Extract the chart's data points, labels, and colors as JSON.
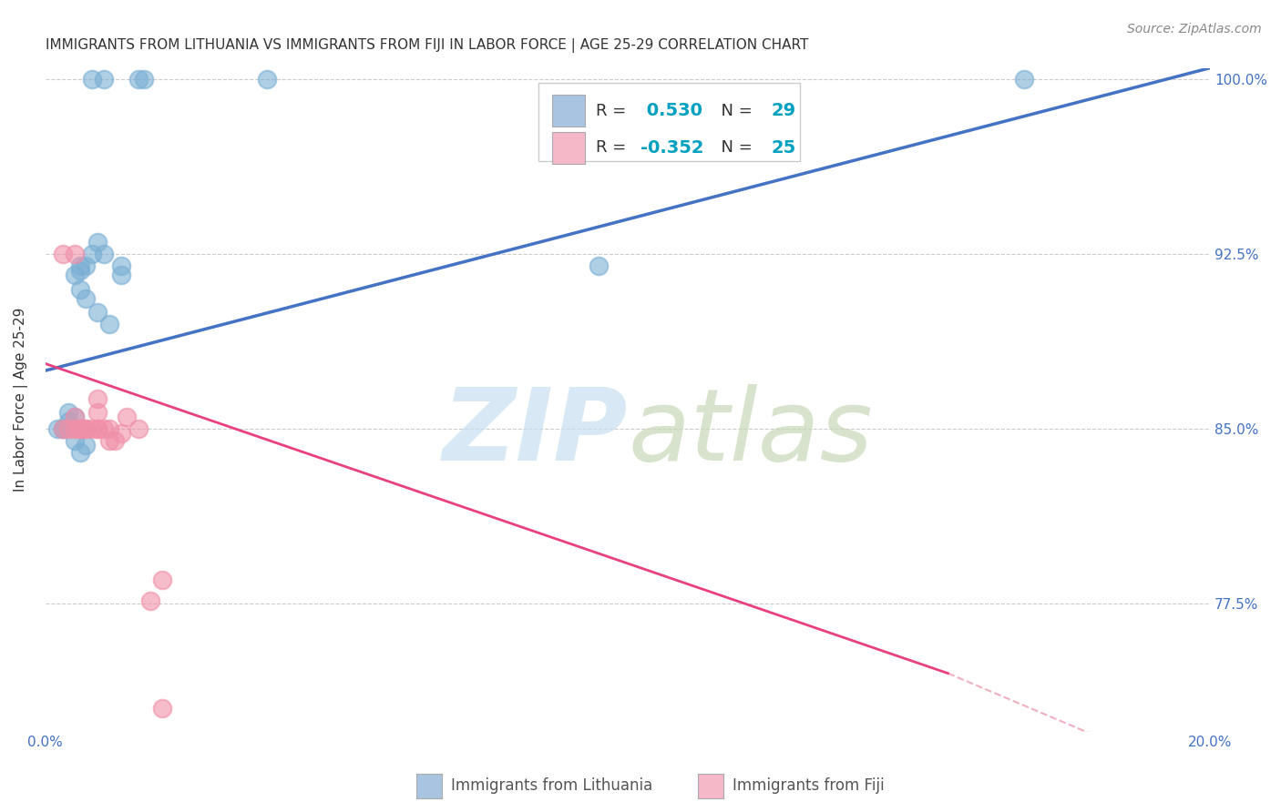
{
  "title": "IMMIGRANTS FROM LITHUANIA VS IMMIGRANTS FROM FIJI IN LABOR FORCE | AGE 25-29 CORRELATION CHART",
  "source": "Source: ZipAtlas.com",
  "ylabel": "In Labor Force | Age 25-29",
  "xlim": [
    0.0,
    0.2
  ],
  "ylim": [
    0.72,
    1.005
  ],
  "xticks": [
    0.0,
    0.05,
    0.1,
    0.15,
    0.2
  ],
  "xtick_labels": [
    "0.0%",
    "",
    "",
    "",
    "20.0%"
  ],
  "yticks": [
    0.775,
    0.85,
    0.925,
    1.0
  ],
  "ytick_labels": [
    "77.5%",
    "85.0%",
    "92.5%",
    "100.0%"
  ],
  "legend_entries": [
    {
      "label_r": "R = ",
      "label_rv": " 0.530",
      "label_n": "  N = ",
      "label_nv": "29",
      "color": "#a8c4e0"
    },
    {
      "label_r": "R = ",
      "label_rv": "-0.352",
      "label_n": "  N = ",
      "label_nv": "25",
      "color": "#f4b8c8"
    }
  ],
  "blue_scatter": {
    "x": [
      0.008,
      0.01,
      0.016,
      0.017,
      0.008,
      0.009,
      0.01,
      0.006,
      0.007,
      0.006,
      0.005,
      0.006,
      0.007,
      0.009,
      0.011,
      0.013,
      0.013,
      0.005,
      0.004,
      0.004,
      0.003,
      0.003,
      0.002,
      0.005,
      0.007,
      0.006,
      0.038,
      0.095,
      0.168
    ],
    "y": [
      1.0,
      1.0,
      1.0,
      1.0,
      0.925,
      0.93,
      0.925,
      0.92,
      0.92,
      0.918,
      0.916,
      0.91,
      0.906,
      0.9,
      0.895,
      0.92,
      0.916,
      0.855,
      0.857,
      0.853,
      0.85,
      0.85,
      0.85,
      0.845,
      0.843,
      0.84,
      1.0,
      0.92,
      1.0
    ],
    "color": "#7bafd4"
  },
  "pink_scatter": {
    "x": [
      0.003,
      0.004,
      0.005,
      0.006,
      0.006,
      0.007,
      0.007,
      0.008,
      0.009,
      0.009,
      0.01,
      0.011,
      0.011,
      0.012,
      0.013,
      0.014,
      0.016,
      0.018,
      0.003,
      0.005,
      0.005,
      0.009,
      0.009,
      0.02,
      0.02
    ],
    "y": [
      0.85,
      0.85,
      0.85,
      0.85,
      0.85,
      0.85,
      0.85,
      0.85,
      0.85,
      0.85,
      0.85,
      0.845,
      0.85,
      0.845,
      0.848,
      0.855,
      0.85,
      0.776,
      0.925,
      0.925,
      0.855,
      0.863,
      0.857,
      0.785,
      0.73
    ],
    "color": "#f090a8"
  },
  "blue_line": {
    "x": [
      0.0,
      0.2
    ],
    "y": [
      0.875,
      1.005
    ],
    "color": "#4472c4"
  },
  "pink_line": {
    "x": [
      0.0,
      0.155
    ],
    "y": [
      0.878,
      0.745
    ],
    "color": "#e84080"
  },
  "pink_dashed": {
    "x": [
      0.155,
      0.5
    ],
    "y": [
      0.745,
      0.38
    ],
    "color": "#f0b0c0"
  },
  "bottom_legend": [
    {
      "label": "Immigrants from Lithuania",
      "color": "#a8c4e0"
    },
    {
      "label": "Immigrants from Fiji",
      "color": "#f4b8c8"
    }
  ],
  "background_color": "#ffffff",
  "axis_color": "#4472c4"
}
